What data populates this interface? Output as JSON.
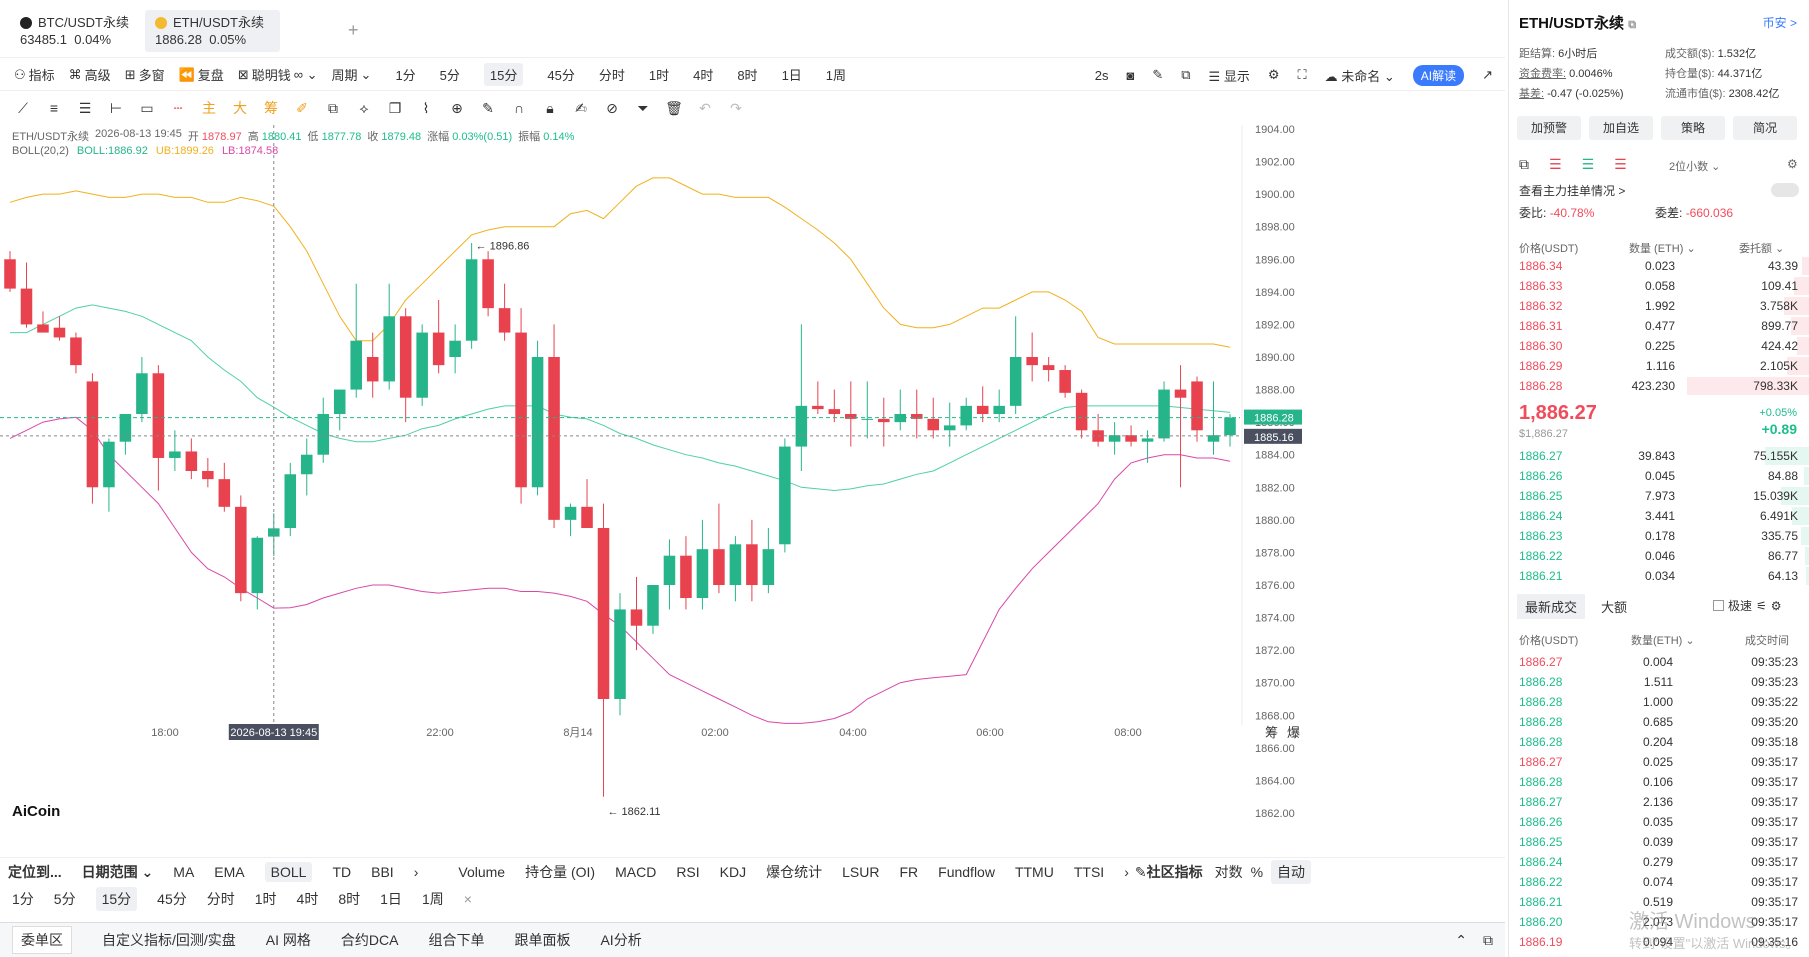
{
  "tabs": [
    {
      "name": "BTC/USDT永续",
      "price": "63485.1",
      "change": "0.04%"
    },
    {
      "name": "ETH/USDT永续",
      "price": "1886.28",
      "change": "0.05%"
    }
  ],
  "toolbar1": {
    "left": [
      "指标",
      "高级",
      "多窗",
      "复盘",
      "聪明钱"
    ],
    "cycle_label": "周期",
    "periods": [
      "1分",
      "5分",
      "15分",
      "45分",
      "分时",
      "1时",
      "4时",
      "8时",
      "1日",
      "1周"
    ],
    "selected_period": "15分",
    "refresh": "2s",
    "show": "显示",
    "account": "未命名",
    "ai": "AI解读"
  },
  "chart": {
    "ohlc": {
      "symbol": "ETH/USDT永续",
      "time": "2026-08-13 19:45",
      "open_label": "开",
      "open": "1878.97",
      "high_label": "高",
      "high": "1880.41",
      "low_label": "低",
      "low": "1877.78",
      "close_label": "收",
      "close": "1879.48",
      "amp_label": "涨幅",
      "amp": "0.03%(0.51)",
      "swing_label": "振幅",
      "swing": "0.14%"
    },
    "boll": {
      "label": "BOLL(20,2)",
      "boll": "BOLL:1886.92",
      "ub": "UB:1899.26",
      "lb": "LB:1874.58"
    },
    "colors": {
      "up": "#26b58a",
      "down": "#e8424f",
      "ub": "#f0b11d",
      "mid": "#4fd0a6",
      "lb": "#d948a8"
    },
    "high_marker": "← 1896.86",
    "low_marker": "← 1862.11",
    "price_tag": "1886.28",
    "cursor_tag": "1885.16",
    "crosshair_time": "2026-08-13 19:45",
    "logo": "AiCoin",
    "y_ticks": [
      "1904.00",
      "1902.00",
      "1900.00",
      "1898.00",
      "1896.00",
      "1894.00",
      "1892.00",
      "1890.00",
      "1888.00",
      "1886.00",
      "1884.00",
      "1882.00",
      "1880.00",
      "1878.00",
      "1876.00",
      "1874.00",
      "1872.00",
      "1870.00",
      "1868.00",
      "1866.00",
      "1864.00",
      "1862.00"
    ],
    "x_ticks": [
      "18:00",
      "22:00",
      "8月14",
      "02:00",
      "04:00",
      "06:00",
      "08:00"
    ],
    "corner": [
      "筹",
      "爆"
    ]
  },
  "chart_data": {
    "type": "candlestick",
    "y_range": [
      1861,
      1905
    ],
    "candles": [
      [
        1896,
        1896.5,
        1894,
        1894.2
      ],
      [
        1894.2,
        1895.8,
        1891.8,
        1892
      ],
      [
        1892,
        1892.8,
        1891.5,
        1891.5
      ],
      [
        1891.8,
        1892.5,
        1891,
        1891.2
      ],
      [
        1891.2,
        1891.5,
        1889,
        1889.5
      ],
      [
        1888.5,
        1889,
        1881,
        1882
      ],
      [
        1882,
        1885,
        1880.5,
        1884.8
      ],
      [
        1884.8,
        1886.5,
        1884,
        1886.5
      ],
      [
        1886.5,
        1890,
        1886,
        1889
      ],
      [
        1889,
        1889.5,
        1881.8,
        1883.8
      ],
      [
        1883.8,
        1885.5,
        1883,
        1884.2
      ],
      [
        1884.2,
        1885,
        1882.5,
        1883
      ],
      [
        1883,
        1883.8,
        1882,
        1882.5
      ],
      [
        1882.5,
        1883.5,
        1880.5,
        1880.8
      ],
      [
        1880.8,
        1881.5,
        1875,
        1875.5
      ],
      [
        1875.5,
        1879,
        1874.5,
        1878.9
      ],
      [
        1878.97,
        1880.41,
        1877.78,
        1879.48
      ],
      [
        1879.5,
        1883.5,
        1879,
        1882.8
      ],
      [
        1882.8,
        1885,
        1881.5,
        1884
      ],
      [
        1884,
        1887.5,
        1883.5,
        1886.5
      ],
      [
        1886.5,
        1888,
        1885.5,
        1888
      ],
      [
        1888,
        1894.5,
        1887.5,
        1891
      ],
      [
        1890,
        1891.5,
        1887.5,
        1888.5
      ],
      [
        1888.5,
        1894.5,
        1888,
        1892.5
      ],
      [
        1892.5,
        1893,
        1886,
        1887.5
      ],
      [
        1887.5,
        1892,
        1887,
        1891.5
      ],
      [
        1891.5,
        1893.5,
        1889,
        1889.5
      ],
      [
        1890,
        1892,
        1889,
        1891
      ],
      [
        1891,
        1897,
        1890.5,
        1896
      ],
      [
        1896,
        1896.5,
        1892.5,
        1893
      ],
      [
        1893,
        1894.5,
        1891,
        1891.5
      ],
      [
        1891.5,
        1893,
        1881,
        1882
      ],
      [
        1882,
        1891,
        1881.5,
        1890
      ],
      [
        1890,
        1892,
        1879.5,
        1880
      ],
      [
        1880,
        1881,
        1879,
        1880.8
      ],
      [
        1880.8,
        1882.5,
        1879.5,
        1879.5
      ],
      [
        1879.5,
        1881,
        1863,
        1869
      ],
      [
        1869,
        1875.5,
        1868,
        1874.5
      ],
      [
        1874.5,
        1876.5,
        1872,
        1873.5
      ],
      [
        1873.5,
        1876,
        1873,
        1876
      ],
      [
        1876,
        1878.8,
        1874.5,
        1877.8
      ],
      [
        1877.8,
        1879,
        1874.5,
        1875.2
      ],
      [
        1875.2,
        1880,
        1874.5,
        1878.2
      ],
      [
        1878.2,
        1881,
        1875.5,
        1876
      ],
      [
        1876,
        1879,
        1875,
        1878.5
      ],
      [
        1878.5,
        1880,
        1875,
        1876
      ],
      [
        1876,
        1879.5,
        1875.5,
        1878.2
      ],
      [
        1878.5,
        1885,
        1878,
        1884.5
      ],
      [
        1884.5,
        1892,
        1883,
        1887
      ],
      [
        1887,
        1888.5,
        1886.5,
        1886.8
      ],
      [
        1886.8,
        1888,
        1886,
        1886.5
      ],
      [
        1886.5,
        1888.5,
        1884.5,
        1886.2
      ],
      [
        1886.2,
        1888.5,
        1885,
        1886.2
      ],
      [
        1886.2,
        1887.5,
        1884.5,
        1886
      ],
      [
        1886,
        1888,
        1885.5,
        1886.5
      ],
      [
        1886.5,
        1888,
        1885,
        1886.2
      ],
      [
        1886.2,
        1887.5,
        1885,
        1885.5
      ],
      [
        1885.5,
        1887.2,
        1884.5,
        1885.8
      ],
      [
        1885.8,
        1887.5,
        1885.5,
        1887
      ],
      [
        1887,
        1888.2,
        1886,
        1886.5
      ],
      [
        1886.5,
        1888,
        1886,
        1887
      ],
      [
        1887,
        1892.5,
        1886.5,
        1890
      ],
      [
        1890,
        1891.5,
        1888.5,
        1889.5
      ],
      [
        1889.5,
        1890,
        1888.5,
        1889.2
      ],
      [
        1889.2,
        1889.5,
        1887.5,
        1887.8
      ],
      [
        1887.8,
        1888,
        1885,
        1885.5
      ],
      [
        1885.5,
        1886.5,
        1884.5,
        1884.8
      ],
      [
        1884.8,
        1886,
        1884,
        1885.2
      ],
      [
        1885.2,
        1885.8,
        1884.5,
        1884.8
      ],
      [
        1884.8,
        1885.5,
        1883.5,
        1885
      ],
      [
        1885,
        1888.5,
        1884.8,
        1888
      ],
      [
        1888,
        1889.5,
        1882,
        1887.5
      ],
      [
        1888.5,
        1888.8,
        1884.8,
        1885.5
      ],
      [
        1884.8,
        1888.5,
        1884,
        1885.2
      ],
      [
        1885.2,
        1886.5,
        1884.5,
        1886.28
      ]
    ],
    "ub": [
      1899.5,
      1899.8,
      1900,
      1900,
      1900.2,
      1900,
      1899.8,
      1899.8,
      1900,
      1900,
      1899.8,
      1899.8,
      1899.5,
      1899.5,
      1899.8,
      1899.6,
      1899.26,
      1898,
      1896.5,
      1894.5,
      1892.5,
      1891,
      1891,
      1892,
      1893.5,
      1894.5,
      1895.5,
      1896.5,
      1897.5,
      1897.8,
      1898,
      1898,
      1898,
      1898,
      1898.8,
      1899,
      1898.5,
      1899.5,
      1900.5,
      1901,
      1901,
      1900.5,
      1900,
      1900,
      1899.8,
      1899.8,
      1899.8,
      1899.2,
      1898.5,
      1897.8,
      1897,
      1896,
      1894.5,
      1893,
      1892,
      1891.8,
      1891.8,
      1892,
      1892.5,
      1893,
      1893,
      1893.5,
      1894,
      1894,
      1893.5,
      1892.8,
      1891.2,
      1890.8,
      1890.8,
      1890.8,
      1890.8,
      1890.8,
      1890.8,
      1890.8,
      1890.6
    ],
    "mid": [
      1891.5,
      1891.5,
      1892,
      1892.5,
      1893,
      1893.2,
      1893,
      1892.8,
      1892.5,
      1892,
      1891.5,
      1891,
      1890,
      1889.2,
      1888.5,
      1887.5,
      1886.92,
      1886.3,
      1885.8,
      1885.3,
      1885,
      1884.8,
      1884.8,
      1885,
      1885.2,
      1885.6,
      1885.8,
      1886.2,
      1886.5,
      1886.8,
      1887,
      1887,
      1887,
      1886.5,
      1886.3,
      1886.2,
      1885.8,
      1885.3,
      1885,
      1884.6,
      1884.3,
      1884,
      1883.8,
      1883.5,
      1883.3,
      1883,
      1882.7,
      1882.4,
      1882,
      1881.9,
      1881.8,
      1881.9,
      1882.1,
      1882.2,
      1882.5,
      1882.8,
      1883,
      1883.5,
      1884,
      1884.5,
      1885,
      1885.5,
      1886,
      1886.5,
      1886.9,
      1887,
      1887,
      1887,
      1887,
      1887,
      1887,
      1886.9,
      1886.8,
      1886.7,
      1886.6
    ],
    "lb": [
      1885,
      1885.5,
      1886,
      1886.2,
      1886.3,
      1885.5,
      1884,
      1883,
      1882,
      1881,
      1879.5,
      1878,
      1877,
      1876.5,
      1875.8,
      1875.2,
      1874.58,
      1874.6,
      1874.8,
      1875.2,
      1875.5,
      1875.8,
      1876,
      1876,
      1875.8,
      1875.6,
      1875.5,
      1875.6,
      1875.7,
      1875.8,
      1875.8,
      1875.6,
      1875.6,
      1875.5,
      1875.3,
      1875,
      1874.2,
      1873.5,
      1872.5,
      1871.5,
      1870.5,
      1870,
      1869.5,
      1869,
      1868.5,
      1868,
      1867.6,
      1867.5,
      1867.5,
      1867.6,
      1867.8,
      1868.2,
      1869,
      1869.5,
      1870,
      1870.2,
      1870.3,
      1870.4,
      1870.5,
      1872.5,
      1874.5,
      1875.8,
      1877,
      1878,
      1879,
      1880,
      1881,
      1882.5,
      1883.5,
      1883.8,
      1884,
      1884,
      1883.8,
      1883.8,
      1883.6
    ]
  },
  "bottom_row1": {
    "locate": "定位到...",
    "range": "日期范围",
    "inds": [
      "MA",
      "EMA",
      "BOLL",
      "TD",
      "BBI"
    ],
    "selected": "BOLL",
    "sub": [
      "Volume",
      "持仓量 (OI)",
      "MACD",
      "RSI",
      "KDJ",
      "爆仓统计",
      "LSUR",
      "FR",
      "Fundflow",
      "TTMU",
      "TTSI"
    ],
    "community": "社区指标",
    "log": "对数",
    "pct": "%",
    "auto": "自动"
  },
  "bottom_row2": {
    "periods": [
      "1分",
      "5分",
      "15分",
      "45分",
      "分时",
      "1时",
      "4时",
      "8时",
      "1日",
      "1周"
    ],
    "selected": "15分"
  },
  "bottom_bar": {
    "items": [
      "委单区",
      "自定义指标/回测/实盘",
      "AI 网格",
      "合约DCA",
      "组合下单",
      "跟单面板",
      "AI分析"
    ],
    "selected": "委单区"
  },
  "right": {
    "title": "ETH/USDT永续",
    "link": "币安 >",
    "stats": [
      [
        "距结算:",
        "6小时后"
      ],
      [
        "成交额($):",
        "1.532亿"
      ],
      [
        "资金费率:",
        "0.0046%"
      ],
      [
        "持仓量($):",
        "44.371亿"
      ],
      [
        "基差:",
        "-0.47 (-0.025%)"
      ],
      [
        "流通市值($):",
        "2308.42亿"
      ]
    ],
    "buttons": [
      "加预警",
      "加自选",
      "策略",
      "简况"
    ],
    "decimals": "2位小数",
    "main_orders": "查看主力挂单情况 >",
    "ratio_label": "委比:",
    "ratio": "-40.78%",
    "diff_label": "委差:",
    "diff": "-660.036",
    "ob_headers": [
      "价格(USDT)",
      "数量 (ETH)",
      "委托额"
    ],
    "asks": [
      [
        "1886.34",
        "0.023",
        "43.39",
        0.06
      ],
      [
        "1886.33",
        "0.058",
        "109.41",
        0.12
      ],
      [
        "1886.32",
        "1.992",
        "3.758K",
        0.2
      ],
      [
        "1886.31",
        "0.477",
        "899.77",
        0.15
      ],
      [
        "1886.30",
        "0.225",
        "424.42",
        0.1
      ],
      [
        "1886.29",
        "1.116",
        "2.105K",
        0.18
      ],
      [
        "1886.28",
        "423.230",
        "798.33K",
        0.95
      ]
    ],
    "last_price": "1,886.27",
    "last_usd": "$1,886.27",
    "last_change": "+0.05%",
    "last_delta": "+0.89",
    "bids": [
      [
        "1886.27",
        "39.843",
        "75.155K",
        0.35
      ],
      [
        "1886.26",
        "0.045",
        "84.88",
        0.05
      ],
      [
        "1886.25",
        "7.973",
        "15.039K",
        0.22
      ],
      [
        "1886.24",
        "3.441",
        "6.491K",
        0.14
      ],
      [
        "1886.23",
        "0.178",
        "335.75",
        0.07
      ],
      [
        "1886.22",
        "0.046",
        "86.77",
        0.04
      ],
      [
        "1886.21",
        "0.034",
        "64.13",
        0.03
      ]
    ],
    "trade_tabs": [
      "最新成交",
      "大额"
    ],
    "speed": "极速",
    "trade_headers": [
      "价格(USDT)",
      "数量(ETH)",
      "成交时间"
    ],
    "trades": [
      [
        "1886.27",
        "0.004",
        "09:35:23",
        "r"
      ],
      [
        "1886.28",
        "1.511",
        "09:35:23",
        "g"
      ],
      [
        "1886.28",
        "1.000",
        "09:35:22",
        "g"
      ],
      [
        "1886.28",
        "0.685",
        "09:35:20",
        "g"
      ],
      [
        "1886.28",
        "0.204",
        "09:35:18",
        "g"
      ],
      [
        "1886.27",
        "0.025",
        "09:35:17",
        "r"
      ],
      [
        "1886.28",
        "0.106",
        "09:35:17",
        "g"
      ],
      [
        "1886.27",
        "2.136",
        "09:35:17",
        "g"
      ],
      [
        "1886.26",
        "0.035",
        "09:35:17",
        "g"
      ],
      [
        "1886.25",
        "0.039",
        "09:35:17",
        "g"
      ],
      [
        "1886.24",
        "0.279",
        "09:35:17",
        "g"
      ],
      [
        "1886.22",
        "0.074",
        "09:35:17",
        "g"
      ],
      [
        "1886.21",
        "0.519",
        "09:35:17",
        "g"
      ],
      [
        "1886.20",
        "2.073",
        "09:35:17",
        "g"
      ],
      [
        "1886.19",
        "0.094",
        "09:35:16",
        "r"
      ]
    ],
    "watermark1": "激活 Windows",
    "watermark2": "转到\"设置\"以激活 Windows。"
  }
}
